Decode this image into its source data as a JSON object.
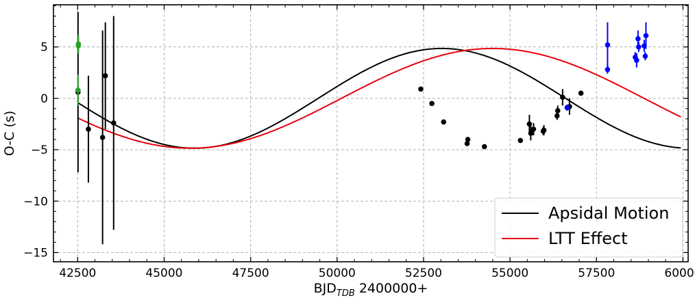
{
  "chart_data": {
    "type": "scatter",
    "xlabel": "BJD",
    "xlabel_sub": "TDB",
    "xlabel_suffix": " 2400000+",
    "ylabel": "O-C (s)",
    "xlim": [
      41800,
      60150
    ],
    "ylim": [
      -15.9,
      9.1
    ],
    "xticks": [
      42500,
      45000,
      47500,
      50000,
      52500,
      55000,
      57500,
      60000
    ],
    "xtick_labels": [
      "42500",
      "45000",
      "47500",
      "50000",
      "52500",
      "55000",
      "57500",
      "60000"
    ],
    "yticks": [
      5,
      0,
      -5,
      -10,
      -15
    ],
    "ytick_labels": [
      "5",
      "0",
      "−5",
      "−10",
      "−15"
    ],
    "grid": true,
    "legend_position": "bottom-right",
    "series": [
      {
        "name": "Apsidal Motion",
        "kind": "model-curve",
        "color": "#000000",
        "amplitude": 4.85,
        "period": 14300,
        "minimum_at": 45880,
        "x_range": [
          42500,
          59950
        ]
      },
      {
        "name": "LTT Effect",
        "kind": "model-curve",
        "color": "#e8000b",
        "amplitude": 4.85,
        "period": 17500,
        "minimum_at": 45750,
        "x_range": [
          42500,
          59950
        ]
      },
      {
        "kind": "observations",
        "color": "#000000",
        "points": [
          {
            "x": 42510,
            "y": 0.6,
            "err": 7.8
          },
          {
            "x": 42810,
            "y": -3.0,
            "err": 5.2
          },
          {
            "x": 43220,
            "y": -3.8,
            "err": 10.4
          },
          {
            "x": 43300,
            "y": 2.2,
            "err": 5.2
          },
          {
            "x": 43540,
            "y": -2.4,
            "err": 10.4
          },
          {
            "x": 52420,
            "y": 0.9,
            "err": 0
          },
          {
            "x": 52740,
            "y": -0.5,
            "err": 0
          },
          {
            "x": 53080,
            "y": -2.3,
            "err": 0
          },
          {
            "x": 53760,
            "y": -4.4,
            "err": 0
          },
          {
            "x": 53780,
            "y": -4.0,
            "err": 0
          },
          {
            "x": 54260,
            "y": -4.7,
            "err": 0
          },
          {
            "x": 55300,
            "y": -4.1,
            "err": 0
          },
          {
            "x": 55560,
            "y": -2.5,
            "err": 0.9
          },
          {
            "x": 55600,
            "y": -3.4,
            "err": 0.7
          },
          {
            "x": 55680,
            "y": -3.0,
            "err": 0.6
          },
          {
            "x": 55980,
            "y": -3.1,
            "err": 0.5
          },
          {
            "x": 55960,
            "y": -3.2,
            "err": 0.4
          },
          {
            "x": 56360,
            "y": -1.7,
            "err": 0.4
          },
          {
            "x": 56380,
            "y": -1.2,
            "err": 0.5
          },
          {
            "x": 56520,
            "y": 0.1,
            "err": 0.8
          },
          {
            "x": 56720,
            "y": -0.8,
            "err": 0.8
          },
          {
            "x": 57050,
            "y": 0.5,
            "err": 0
          }
        ]
      },
      {
        "kind": "observations",
        "color": "#2ca02c",
        "points": [
          {
            "x": 42520,
            "y": 5.3,
            "err": 0.9
          },
          {
            "x": 42520,
            "y": 5.1,
            "err": 0.8
          },
          {
            "x": 42510,
            "y": 0.8,
            "err": 1.5
          }
        ]
      },
      {
        "kind": "observations",
        "color": "#0000ff",
        "points": [
          {
            "x": 56650,
            "y": -0.9,
            "err": 0.3
          },
          {
            "x": 57820,
            "y": 5.2,
            "err": 2.2
          },
          {
            "x": 57820,
            "y": 2.8,
            "err": 0.4
          },
          {
            "x": 58620,
            "y": 4.0,
            "err": 0.5
          },
          {
            "x": 58660,
            "y": 3.7,
            "err": 0.7
          },
          {
            "x": 58700,
            "y": 5.8,
            "err": 0.8
          },
          {
            "x": 58720,
            "y": 5.0,
            "err": 0.5
          },
          {
            "x": 58880,
            "y": 5.1,
            "err": 0.6
          },
          {
            "x": 58930,
            "y": 6.1,
            "err": 1.3
          },
          {
            "x": 58910,
            "y": 4.1,
            "err": 0.4
          }
        ]
      }
    ]
  }
}
